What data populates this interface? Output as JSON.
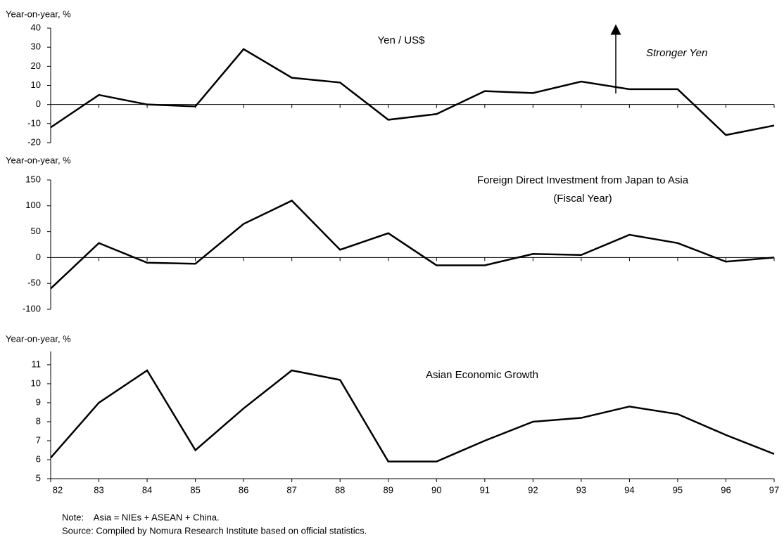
{
  "chart_data": [
    {
      "type": "line",
      "title": "Yen / US$",
      "annotation": "Stronger Yen",
      "ylabel": "Year-on-year, %",
      "color": "#000000",
      "ylim": [
        -20,
        40
      ],
      "yticks": [
        -20,
        -10,
        0,
        10,
        20,
        30,
        40
      ],
      "values": [
        -12,
        5,
        0,
        -1,
        29,
        14,
        11.5,
        -8,
        -5,
        7,
        6,
        12,
        8,
        8,
        -16,
        -11
      ]
    },
    {
      "type": "line",
      "title": "Foreign Direct Investment from Japan to Asia",
      "subtitle": "(Fiscal Year)",
      "ylabel": "Year-on-year, %",
      "color": "#000000",
      "ylim": [
        -100,
        150
      ],
      "yticks": [
        -100,
        -50,
        0,
        50,
        100,
        150
      ],
      "values": [
        -60,
        28,
        -10,
        -12,
        65,
        110,
        15,
        47,
        -15,
        -15,
        7,
        5,
        44,
        28,
        -8,
        0
      ]
    },
    {
      "type": "line",
      "title": "Asian Economic Growth",
      "ylabel": "Year-on-year, %",
      "color": "#000000",
      "ylim": [
        5,
        11.7
      ],
      "yticks": [
        5,
        6,
        7,
        8,
        9,
        10,
        11
      ],
      "categories": [
        "82",
        "83",
        "84",
        "85",
        "86",
        "87",
        "88",
        "89",
        "90",
        "91",
        "92",
        "93",
        "94",
        "95",
        "96",
        "97"
      ],
      "values": [
        6.1,
        9.0,
        10.7,
        6.5,
        8.7,
        10.7,
        10.2,
        5.9,
        5.9,
        7.0,
        8.0,
        8.2,
        8.8,
        8.4,
        7.3,
        6.3
      ]
    }
  ],
  "note": "Note:    Asia = NIEs + ASEAN + China.",
  "source": "Source: Compiled by Nomura Research Institute based on official statistics."
}
